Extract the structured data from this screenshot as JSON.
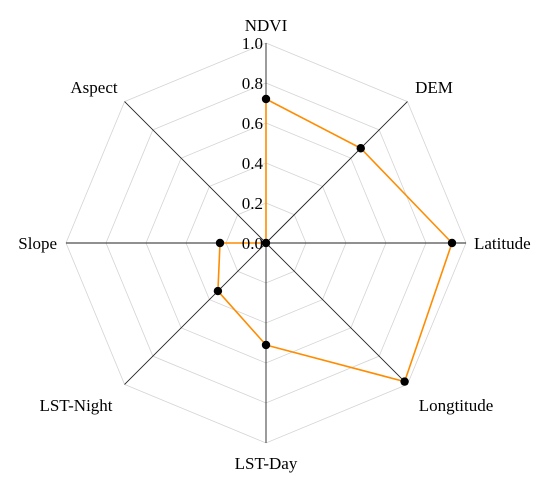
{
  "chart_data": {
    "type": "radar",
    "title": "",
    "axes": [
      "NDVI",
      "DEM",
      "Latitude",
      "Longtitude",
      "LST-Day",
      "LST-Night",
      "Slope",
      "Aspect"
    ],
    "rlim": [
      0,
      1.0
    ],
    "r_ticks": [
      "0.0",
      "0.2",
      "0.4",
      "0.6",
      "0.8",
      "1.0"
    ],
    "grid": true,
    "series": [
      {
        "values": [
          0.72,
          0.67,
          0.93,
          0.98,
          0.51,
          0.34,
          0.23,
          0.0
        ],
        "line_color": "#ff8c00",
        "marker_color": "#000000"
      }
    ]
  }
}
